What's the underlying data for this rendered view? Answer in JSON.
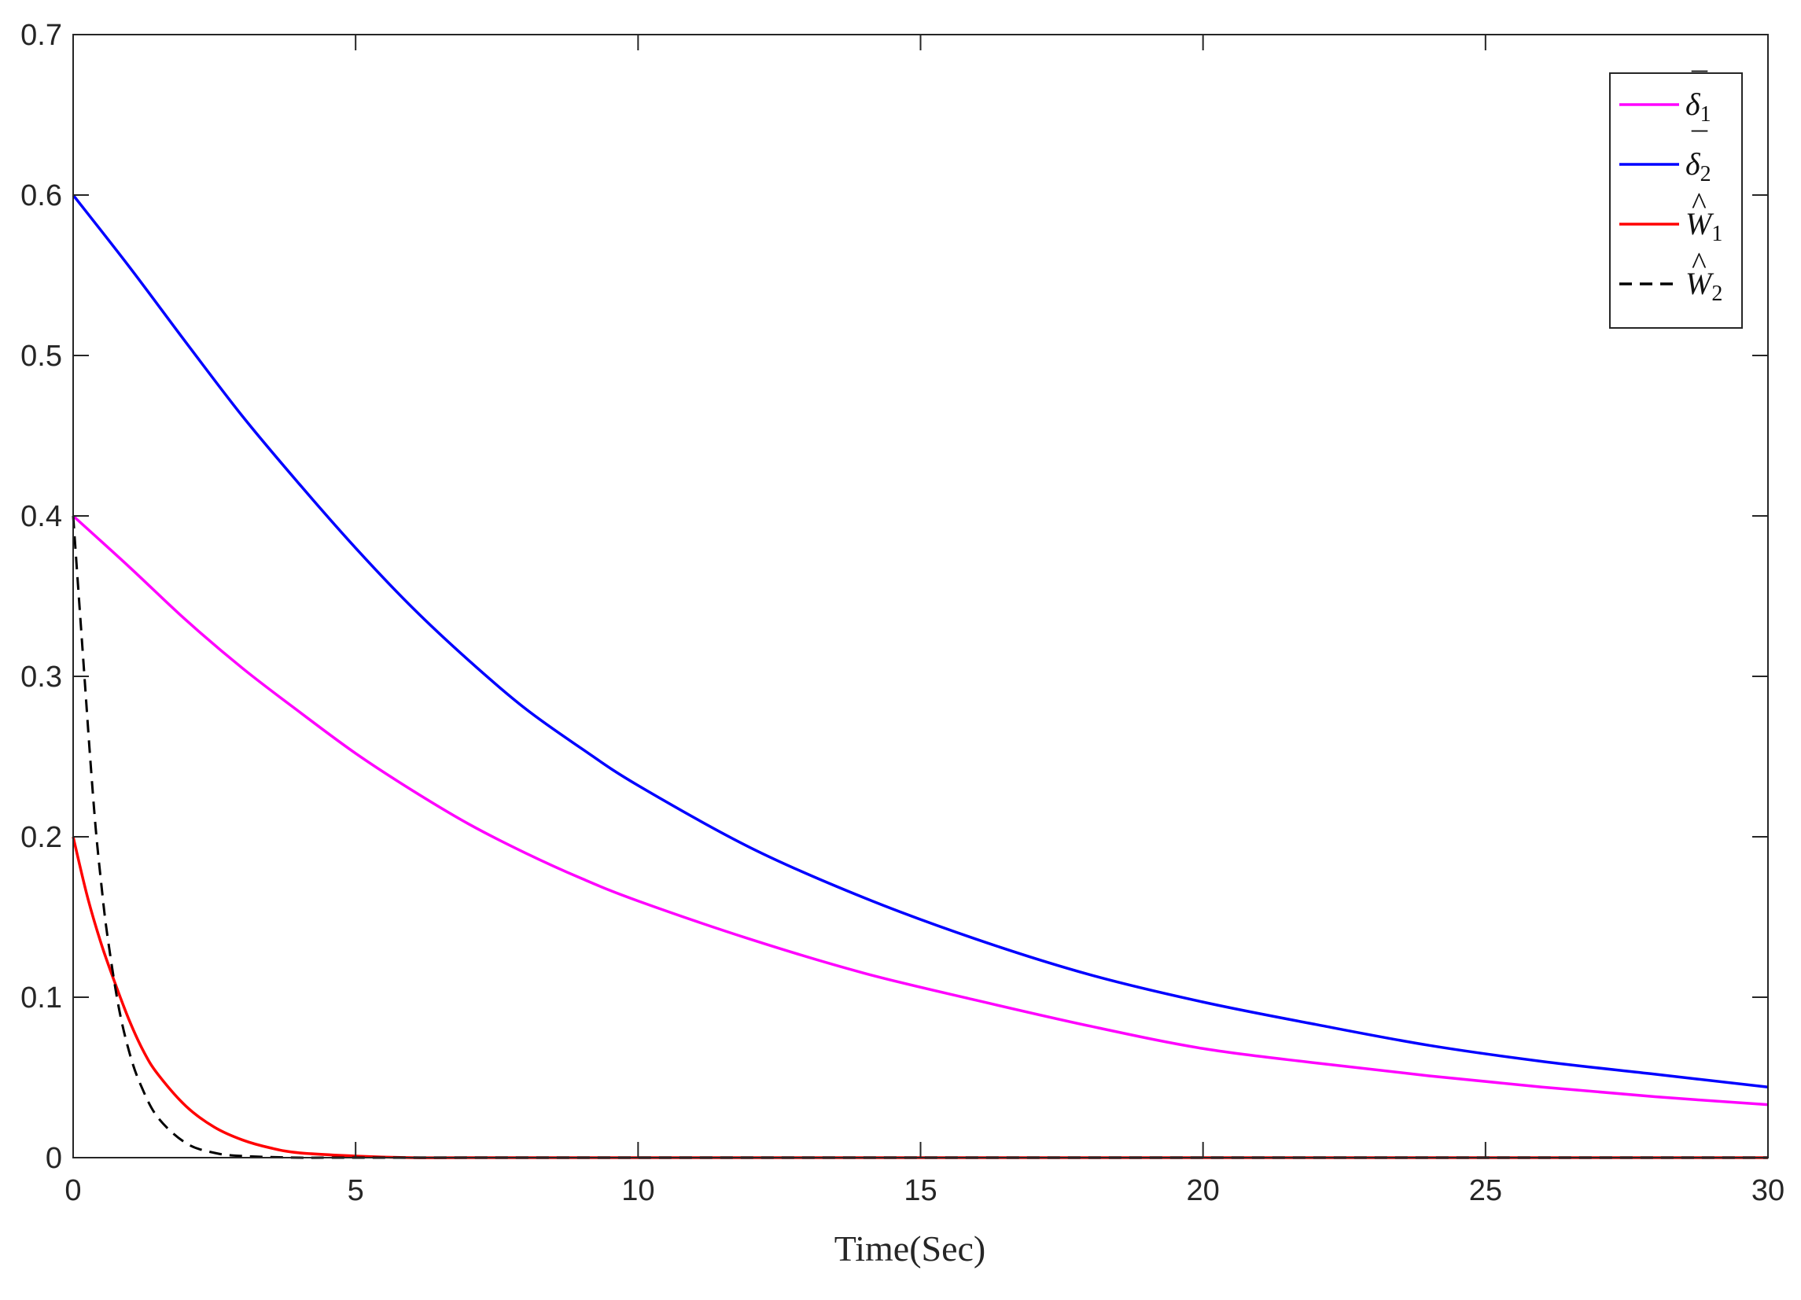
{
  "chart_data": {
    "type": "line",
    "title": "",
    "xlabel": "Time(Sec)",
    "ylabel": "",
    "xlim": [
      0,
      30
    ],
    "ylim": [
      0,
      0.7
    ],
    "xticks": [
      "0",
      "5",
      "10",
      "15",
      "20",
      "25",
      "30"
    ],
    "yticks": [
      "0",
      "0.1",
      "0.2",
      "0.3",
      "0.4",
      "0.5",
      "0.6",
      "0.7"
    ],
    "grid": false,
    "legend_position": "top-right",
    "series": [
      {
        "name": "δ̄1",
        "symbol": "δ",
        "accent": "¯",
        "subscript": "1",
        "color": "#ff00ff",
        "dash": "solid",
        "x": [
          0,
          1,
          2,
          3,
          4,
          5,
          6,
          7,
          8,
          9,
          10,
          12,
          14,
          16,
          18,
          20,
          22,
          24,
          26,
          28,
          30
        ],
        "y": [
          0.4,
          0.368,
          0.335,
          0.305,
          0.278,
          0.252,
          0.229,
          0.208,
          0.19,
          0.174,
          0.16,
          0.136,
          0.115,
          0.098,
          0.082,
          0.068,
          0.059,
          0.051,
          0.044,
          0.038,
          0.033
        ]
      },
      {
        "name": "δ̄2",
        "symbol": "δ",
        "accent": "¯",
        "subscript": "2",
        "color": "#0000ff",
        "dash": "solid",
        "x": [
          0,
          1,
          2,
          3,
          4,
          5,
          6,
          7,
          8,
          9,
          10,
          12,
          14,
          16,
          18,
          20,
          22,
          24,
          26,
          28,
          30
        ],
        "y": [
          0.6,
          0.555,
          0.508,
          0.462,
          0.42,
          0.38,
          0.343,
          0.31,
          0.28,
          0.255,
          0.232,
          0.193,
          0.162,
          0.136,
          0.114,
          0.097,
          0.083,
          0.07,
          0.06,
          0.052,
          0.044
        ]
      },
      {
        "name": "Ŵ1",
        "symbol": "W",
        "accent": "^",
        "subscript": "1",
        "color": "#ff0000",
        "dash": "solid",
        "x": [
          0,
          0.25,
          0.5,
          0.75,
          1,
          1.25,
          1.5,
          2,
          2.5,
          3,
          3.5,
          4,
          5,
          6,
          7,
          10,
          15,
          20,
          25,
          30
        ],
        "y": [
          0.2,
          0.163,
          0.133,
          0.108,
          0.085,
          0.066,
          0.052,
          0.032,
          0.019,
          0.011,
          0.006,
          0.003,
          0.001,
          0.0,
          0.0,
          0.0,
          0.0,
          0.0,
          0.0,
          0.0
        ]
      },
      {
        "name": "Ŵ2",
        "symbol": "W",
        "accent": "^",
        "subscript": "2",
        "color": "#000000",
        "dash": "dashed",
        "x": [
          0,
          0.1,
          0.2,
          0.3,
          0.4,
          0.5,
          0.6,
          0.8,
          1,
          1.2,
          1.5,
          2,
          2.5,
          3,
          4,
          5,
          10,
          15,
          20,
          25,
          30
        ],
        "y": [
          0.4,
          0.35,
          0.3,
          0.25,
          0.205,
          0.17,
          0.14,
          0.095,
          0.065,
          0.045,
          0.025,
          0.009,
          0.003,
          0.001,
          0.0,
          0.0,
          0.0,
          0.0,
          0.0,
          0.0,
          0.0
        ]
      }
    ]
  }
}
